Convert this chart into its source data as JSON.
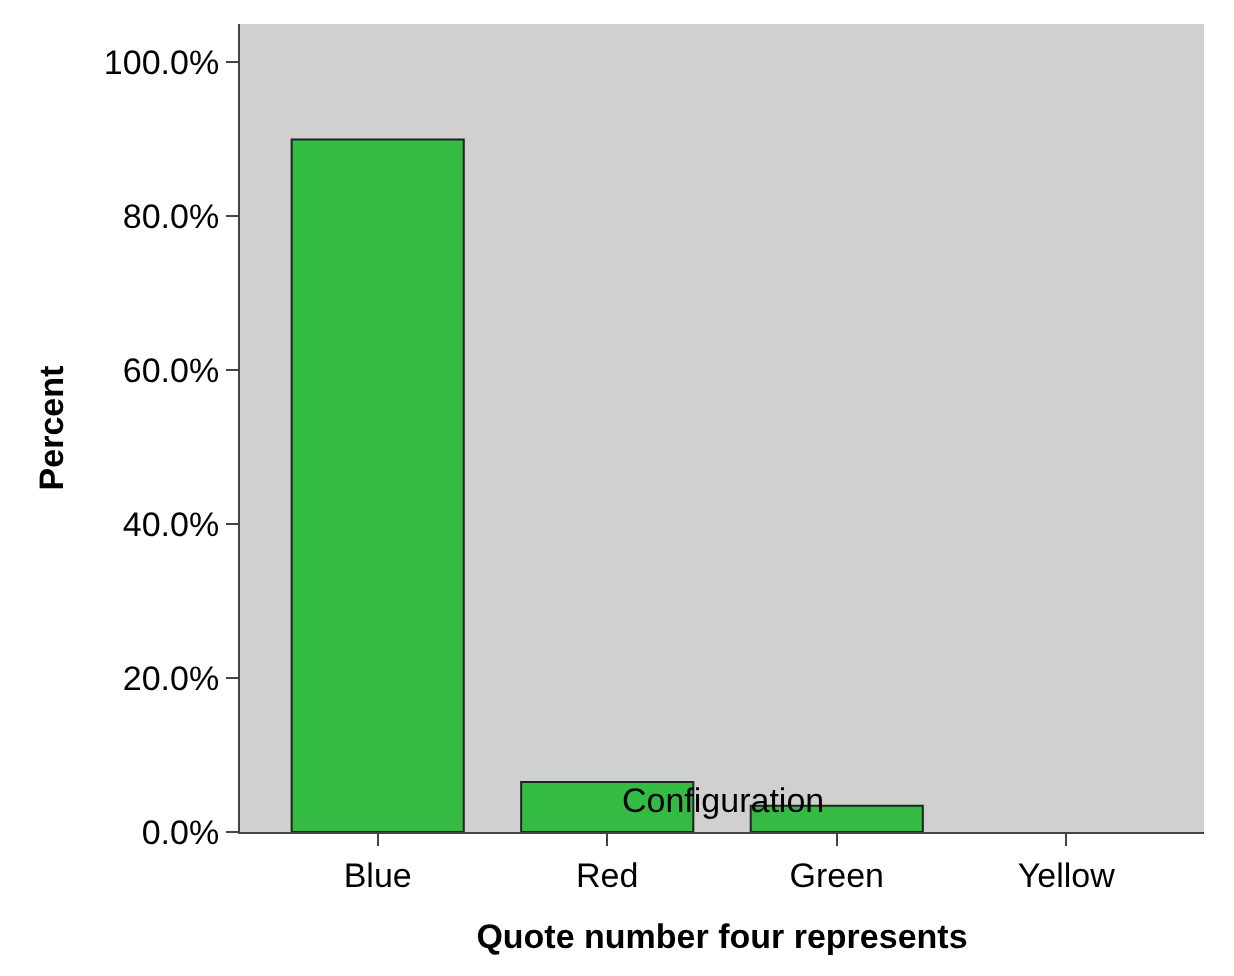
{
  "chart_data": {
    "type": "bar",
    "xlabel": "Quote number four represents",
    "ylabel": "Percent",
    "categories": [
      "Blue",
      "Red",
      "Green",
      "Yellow"
    ],
    "values": [
      90,
      6.5,
      3.4,
      0
    ],
    "color": "#33bb44",
    "ylim": [
      0,
      105
    ],
    "yticks": [
      {
        "value": 0,
        "label": "0.0%"
      },
      {
        "value": 20,
        "label": "20.0%"
      },
      {
        "value": 40,
        "label": "40.0%"
      },
      {
        "value": 60,
        "label": "60.0%"
      },
      {
        "value": 80,
        "label": "80.0%"
      },
      {
        "value": 100,
        "label": "100.0%"
      }
    ],
    "grid": false,
    "annotations": [
      "Configuration"
    ]
  }
}
